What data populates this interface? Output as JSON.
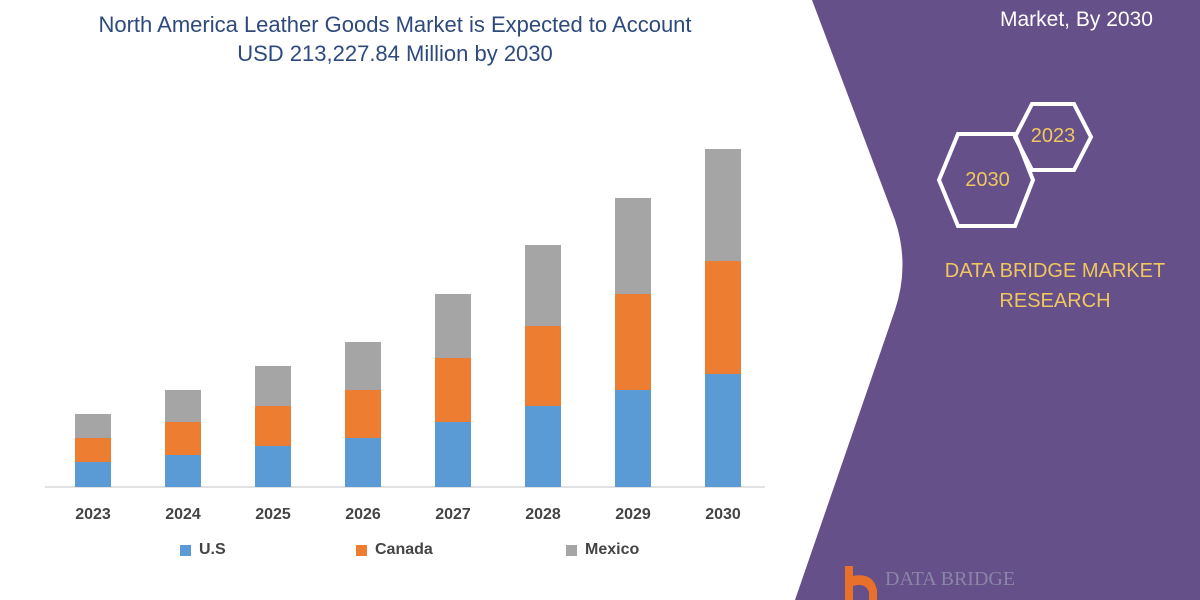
{
  "title_line1": "North America Leather Goods Market is Expected to Account",
  "title_line2": "USD 213,227.84 Million by 2030",
  "side_panel": {
    "heading": "Market, By 2030",
    "hex_a": "2023",
    "hex_b": "2030",
    "brand": "DATA BRIDGE MARKET",
    "brand2": "RESEARCH",
    "logo_text": "DATA BRIDGE",
    "panel_color": "#65508a"
  },
  "chart_data": {
    "type": "bar",
    "stacked": true,
    "title": "",
    "xlabel": "",
    "ylabel": "",
    "categories": [
      "2023",
      "2024",
      "2025",
      "2026",
      "2027",
      "2028",
      "2029",
      "2030"
    ],
    "series": [
      {
        "name": "U.S",
        "color": "#5b9bd5",
        "values": [
          25,
          32,
          41,
          49,
          65,
          81,
          97,
          113
        ]
      },
      {
        "name": "Canada",
        "color": "#ed7d31",
        "values": [
          24,
          33,
          40,
          48,
          64,
          80,
          96,
          113
        ]
      },
      {
        "name": "Mexico",
        "color": "#a5a5a5",
        "values": [
          24,
          32,
          40,
          48,
          64,
          81,
          96,
          112
        ]
      }
    ],
    "ylim": [
      0,
      340
    ],
    "grid": false,
    "legend": "bottom",
    "note": "relative values; no y-axis printed"
  }
}
